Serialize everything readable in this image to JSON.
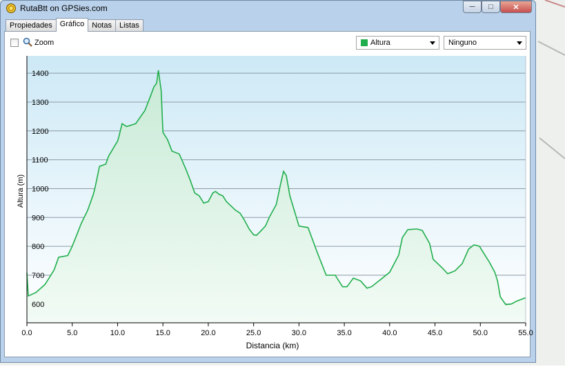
{
  "window": {
    "title": "RutaBtt on GPSies.com"
  },
  "tabs": [
    "Propiedades",
    "Gráfico",
    "Notas",
    "Listas"
  ],
  "toolbar": {
    "zoom_label": "Zoom",
    "series_select": "Altura",
    "series_color": "#1fae4b",
    "secondary_select": "Ninguno"
  },
  "chart_data": {
    "type": "area",
    "xlabel": "Distancia  (km)",
    "ylabel": "Altura (m)",
    "xlim": [
      0,
      55
    ],
    "ylim": [
      535,
      1460
    ],
    "xticks": [
      "0.0",
      "5.0",
      "10.0",
      "15.0",
      "20.0",
      "25.0",
      "30.0",
      "35.0",
      "40.0",
      "45.0",
      "50.0",
      "55.0"
    ],
    "yticks": [
      "600",
      "700",
      "800",
      "900",
      "1000",
      "1100",
      "1200",
      "1300",
      "1400"
    ],
    "grid": true,
    "series": [
      {
        "color": "#1fae4b",
        "x": [
          0,
          0.15,
          1,
          2,
          3,
          3.5,
          4.5,
          5,
          5.5,
          6,
          6.7,
          7.3,
          7.5,
          8,
          8.7,
          9,
          10,
          10.1,
          10.5,
          11,
          12,
          13,
          13.5,
          14,
          14.3,
          14.5,
          14.8,
          15,
          15.5,
          16,
          16.8,
          17.5,
          18,
          18.5,
          19,
          19.5,
          20,
          20.5,
          20.8,
          21.2,
          21.6,
          22,
          22.5,
          23,
          23.5,
          24,
          24.5,
          25,
          25.3,
          25.7,
          26.3,
          26.8,
          27.5,
          28,
          28.3,
          28.6,
          29,
          30,
          31,
          32,
          33,
          34,
          34.8,
          35.3,
          36,
          36.8,
          37.5,
          38,
          39,
          40,
          41,
          41.4,
          42,
          43,
          43.6,
          44.4,
          44.8,
          45.3,
          45.8,
          46.4,
          47.2,
          48,
          48.7,
          49.3,
          49.9,
          50.2,
          51,
          51.6,
          51.9,
          52.2,
          52.8,
          53.4,
          54,
          55
        ],
        "y": [
          708,
          628,
          640,
          668,
          718,
          762,
          768,
          800,
          840,
          880,
          925,
          978,
          1001,
          1077,
          1085,
          1112,
          1165,
          1175,
          1225,
          1215,
          1225,
          1270,
          1310,
          1352,
          1365,
          1410,
          1340,
          1195,
          1170,
          1130,
          1120,
          1070,
          1030,
          985,
          975,
          950,
          955,
          985,
          990,
          980,
          975,
          955,
          940,
          925,
          915,
          890,
          860,
          840,
          838,
          850,
          870,
          905,
          945,
          1020,
          1060,
          1045,
          975,
          870,
          865,
          780,
          700,
          700,
          660,
          660,
          690,
          680,
          655,
          660,
          685,
          710,
          770,
          830,
          858,
          860,
          855,
          810,
          755,
          740,
          725,
          705,
          715,
          740,
          790,
          805,
          800,
          785,
          745,
          710,
          680,
          625,
          598,
          600,
          610,
          622
        ]
      }
    ]
  }
}
